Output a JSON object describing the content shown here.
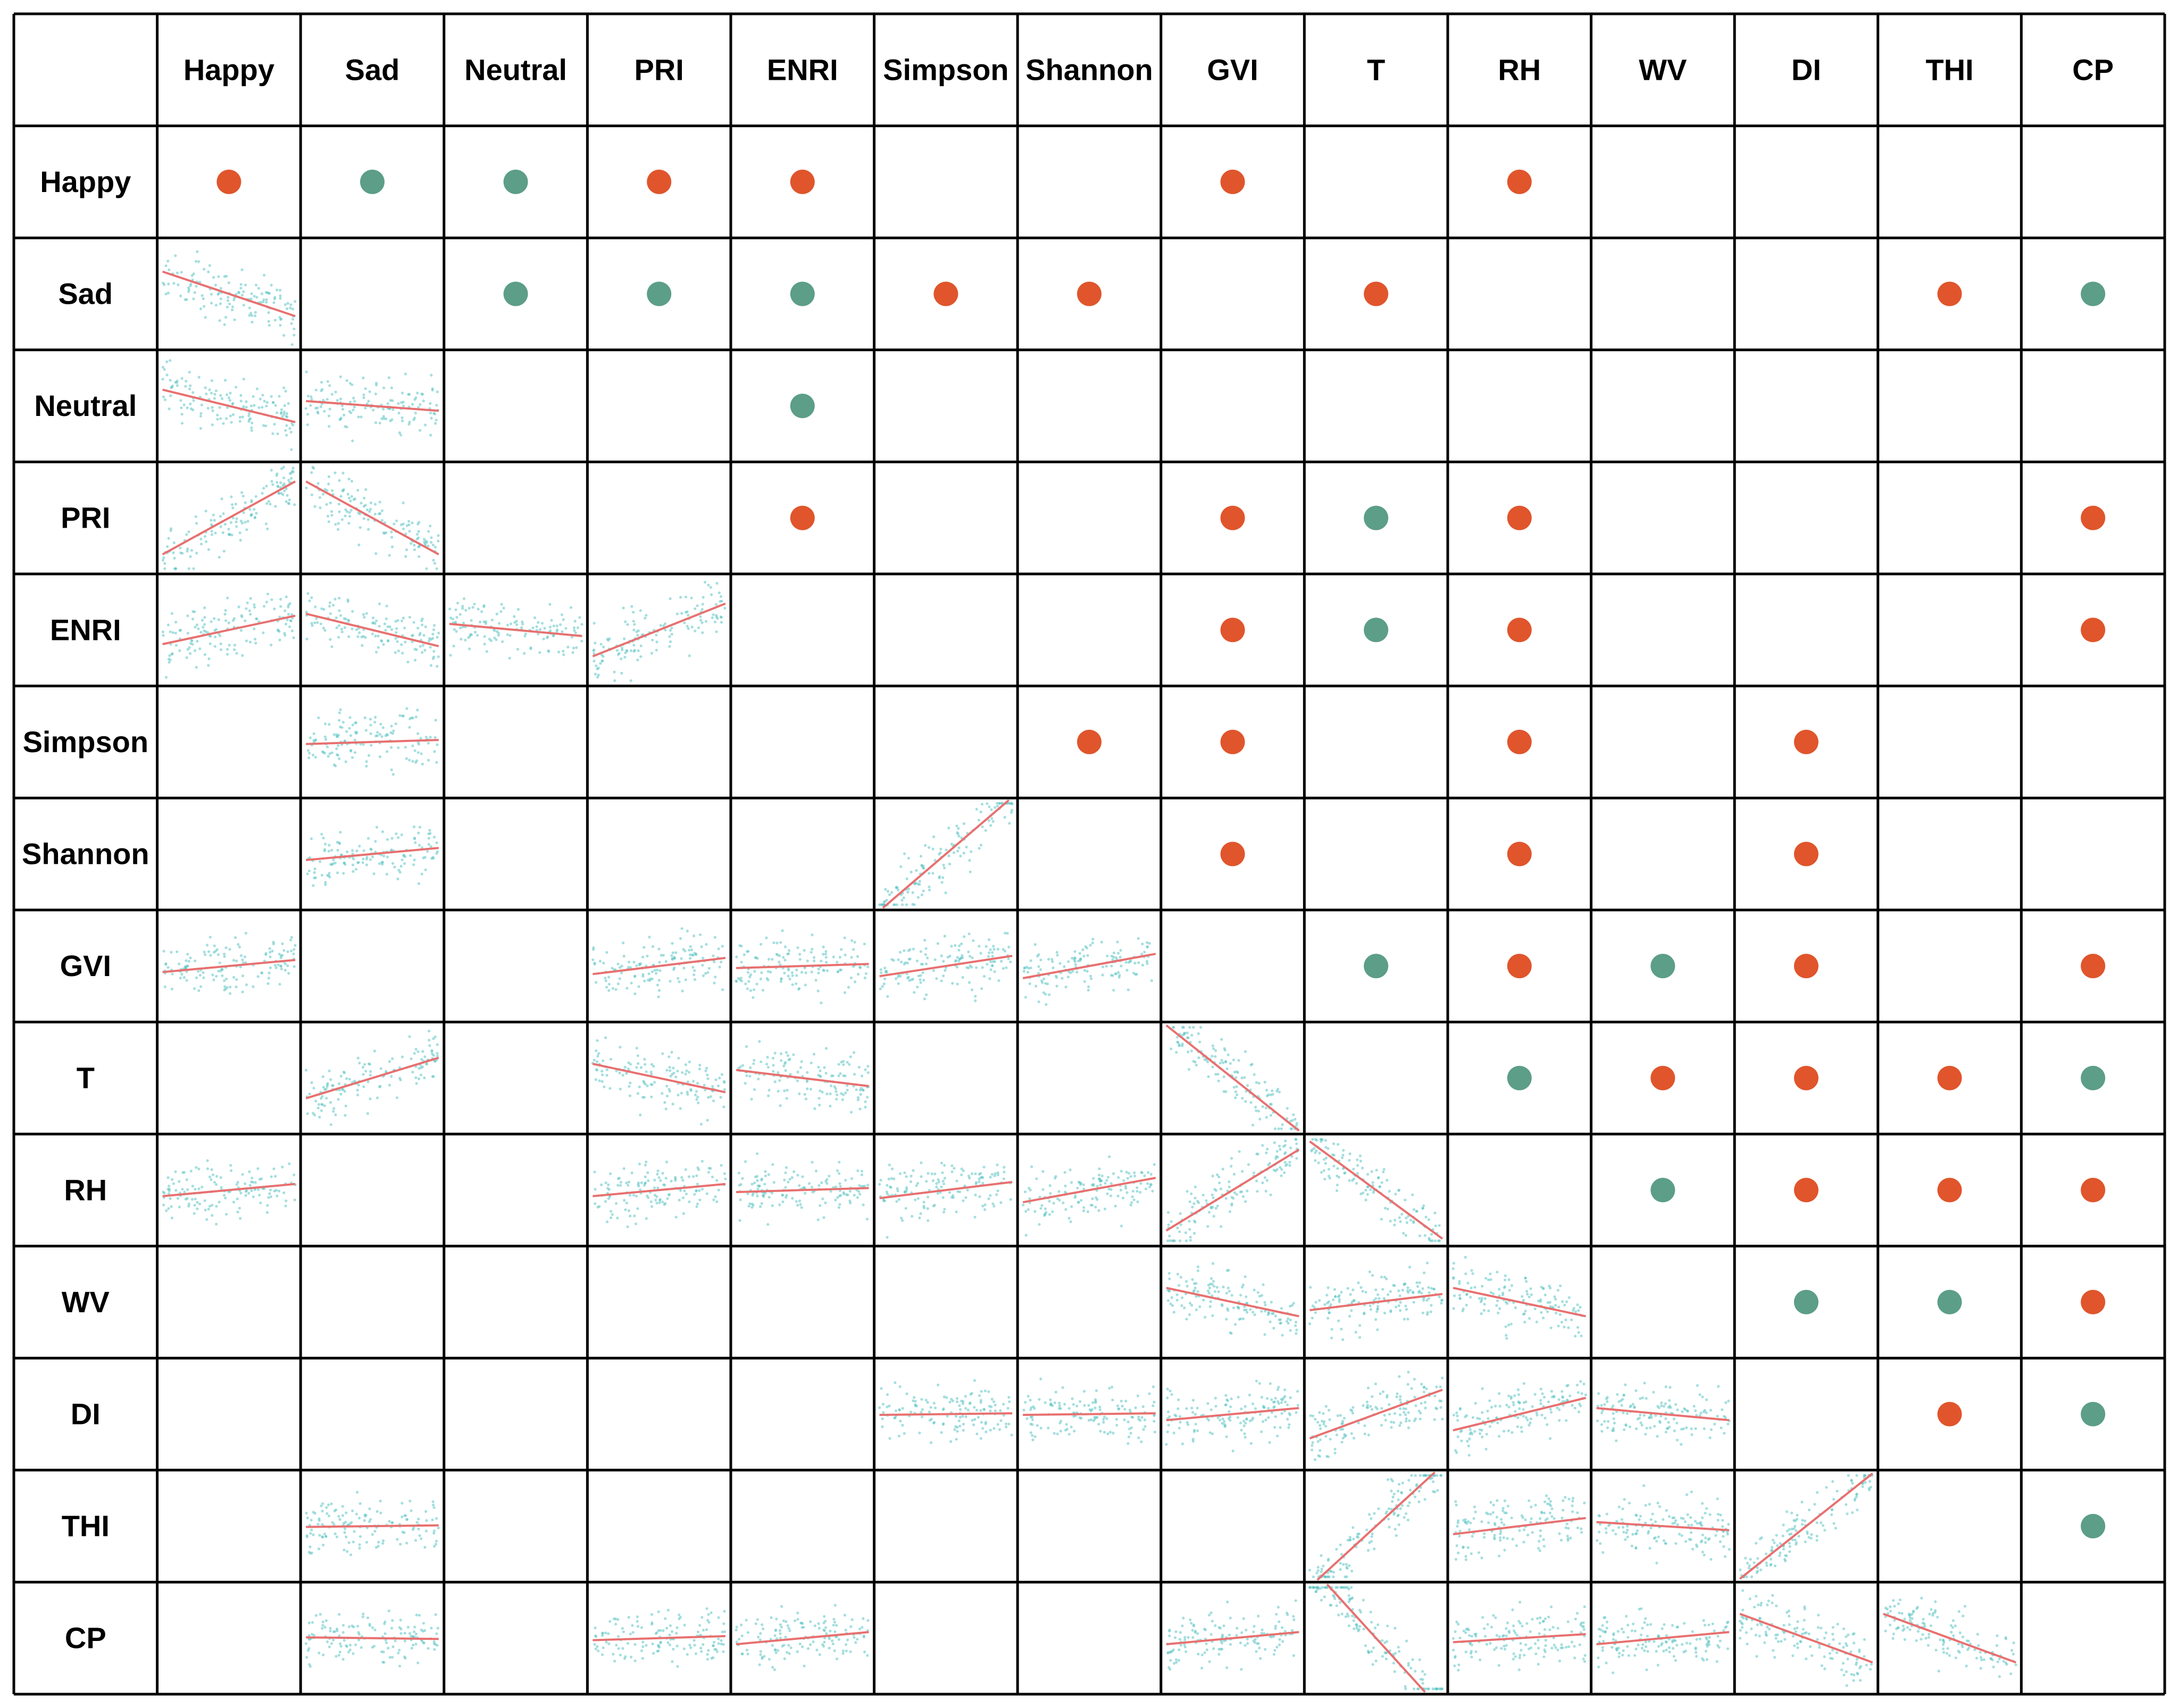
{
  "chart_data": {
    "type": "correlation-matrix",
    "variables": [
      "Happy",
      "Sad",
      "Neutral",
      "PRI",
      "ENRI",
      "Simpson",
      "Shannon",
      "GVI",
      "T",
      "RH",
      "WV",
      "DI",
      "THI",
      "CP"
    ],
    "colors": {
      "positive": "#E0552C",
      "negative": "#5C9E88",
      "scatter_points": "#5BC2C2",
      "fit_line": "#E87070",
      "grid": "#000000"
    },
    "upper_triangle_note": "Dot in cell [row, col] marks a significant correlation; positive or negative sign by color.",
    "significant_correlations": [
      {
        "row": "Happy",
        "col": "Happy",
        "sign": "positive"
      },
      {
        "row": "Happy",
        "col": "Sad",
        "sign": "negative"
      },
      {
        "row": "Happy",
        "col": "Neutral",
        "sign": "negative"
      },
      {
        "row": "Happy",
        "col": "PRI",
        "sign": "positive"
      },
      {
        "row": "Happy",
        "col": "ENRI",
        "sign": "positive"
      },
      {
        "row": "Happy",
        "col": "GVI",
        "sign": "positive"
      },
      {
        "row": "Happy",
        "col": "RH",
        "sign": "positive"
      },
      {
        "row": "Sad",
        "col": "Neutral",
        "sign": "negative"
      },
      {
        "row": "Sad",
        "col": "PRI",
        "sign": "negative"
      },
      {
        "row": "Sad",
        "col": "ENRI",
        "sign": "negative"
      },
      {
        "row": "Sad",
        "col": "Simpson",
        "sign": "positive"
      },
      {
        "row": "Sad",
        "col": "Shannon",
        "sign": "positive"
      },
      {
        "row": "Sad",
        "col": "T",
        "sign": "positive"
      },
      {
        "row": "Sad",
        "col": "THI",
        "sign": "positive"
      },
      {
        "row": "Sad",
        "col": "CP",
        "sign": "negative"
      },
      {
        "row": "Neutral",
        "col": "ENRI",
        "sign": "negative"
      },
      {
        "row": "PRI",
        "col": "ENRI",
        "sign": "positive"
      },
      {
        "row": "PRI",
        "col": "GVI",
        "sign": "positive"
      },
      {
        "row": "PRI",
        "col": "T",
        "sign": "negative"
      },
      {
        "row": "PRI",
        "col": "RH",
        "sign": "positive"
      },
      {
        "row": "PRI",
        "col": "CP",
        "sign": "positive"
      },
      {
        "row": "ENRI",
        "col": "GVI",
        "sign": "positive"
      },
      {
        "row": "ENRI",
        "col": "T",
        "sign": "negative"
      },
      {
        "row": "ENRI",
        "col": "RH",
        "sign": "positive"
      },
      {
        "row": "ENRI",
        "col": "CP",
        "sign": "positive"
      },
      {
        "row": "Simpson",
        "col": "Shannon",
        "sign": "positive"
      },
      {
        "row": "Simpson",
        "col": "GVI",
        "sign": "positive"
      },
      {
        "row": "Simpson",
        "col": "RH",
        "sign": "positive"
      },
      {
        "row": "Simpson",
        "col": "DI",
        "sign": "positive"
      },
      {
        "row": "Shannon",
        "col": "GVI",
        "sign": "positive"
      },
      {
        "row": "Shannon",
        "col": "RH",
        "sign": "positive"
      },
      {
        "row": "Shannon",
        "col": "DI",
        "sign": "positive"
      },
      {
        "row": "GVI",
        "col": "T",
        "sign": "negative"
      },
      {
        "row": "GVI",
        "col": "RH",
        "sign": "positive"
      },
      {
        "row": "GVI",
        "col": "WV",
        "sign": "negative"
      },
      {
        "row": "GVI",
        "col": "DI",
        "sign": "positive"
      },
      {
        "row": "GVI",
        "col": "CP",
        "sign": "positive"
      },
      {
        "row": "T",
        "col": "RH",
        "sign": "negative"
      },
      {
        "row": "T",
        "col": "WV",
        "sign": "positive"
      },
      {
        "row": "T",
        "col": "DI",
        "sign": "positive"
      },
      {
        "row": "T",
        "col": "THI",
        "sign": "positive"
      },
      {
        "row": "T",
        "col": "CP",
        "sign": "negative"
      },
      {
        "row": "RH",
        "col": "WV",
        "sign": "negative"
      },
      {
        "row": "RH",
        "col": "DI",
        "sign": "positive"
      },
      {
        "row": "RH",
        "col": "THI",
        "sign": "positive"
      },
      {
        "row": "RH",
        "col": "CP",
        "sign": "positive"
      },
      {
        "row": "WV",
        "col": "DI",
        "sign": "negative"
      },
      {
        "row": "WV",
        "col": "THI",
        "sign": "negative"
      },
      {
        "row": "WV",
        "col": "CP",
        "sign": "positive"
      },
      {
        "row": "DI",
        "col": "THI",
        "sign": "positive"
      },
      {
        "row": "DI",
        "col": "CP",
        "sign": "negative"
      },
      {
        "row": "THI",
        "col": "CP",
        "sign": "negative"
      }
    ],
    "lower_triangle_note": "Scatter plot with linear fit for selected variable pairs; slope is the approximate visual trend direction.",
    "scatter_panels": [
      {
        "row": "Sad",
        "col": "Happy",
        "slope": -0.55
      },
      {
        "row": "Neutral",
        "col": "Happy",
        "slope": -0.4
      },
      {
        "row": "Neutral",
        "col": "Sad",
        "slope": -0.12
      },
      {
        "row": "PRI",
        "col": "Happy",
        "slope": 0.9
      },
      {
        "row": "PRI",
        "col": "Sad",
        "slope": -0.9
      },
      {
        "row": "ENRI",
        "col": "Happy",
        "slope": 0.35
      },
      {
        "row": "ENRI",
        "col": "Sad",
        "slope": -0.4
      },
      {
        "row": "ENRI",
        "col": "Neutral",
        "slope": -0.15
      },
      {
        "row": "ENRI",
        "col": "PRI",
        "slope": 0.65
      },
      {
        "row": "Simpson",
        "col": "Sad",
        "slope": 0.05
      },
      {
        "row": "Shannon",
        "col": "Sad",
        "slope": 0.15
      },
      {
        "row": "Shannon",
        "col": "Simpson",
        "slope": 1.4
      },
      {
        "row": "GVI",
        "col": "Happy",
        "slope": 0.15
      },
      {
        "row": "GVI",
        "col": "PRI",
        "slope": 0.2
      },
      {
        "row": "GVI",
        "col": "ENRI",
        "slope": 0.05
      },
      {
        "row": "GVI",
        "col": "Simpson",
        "slope": 0.25
      },
      {
        "row": "GVI",
        "col": "Shannon",
        "slope": 0.3
      },
      {
        "row": "T",
        "col": "Sad",
        "slope": 0.5
      },
      {
        "row": "T",
        "col": "PRI",
        "slope": -0.35
      },
      {
        "row": "T",
        "col": "ENRI",
        "slope": -0.2
      },
      {
        "row": "T",
        "col": "GVI",
        "slope": -1.3
      },
      {
        "row": "RH",
        "col": "Happy",
        "slope": 0.15
      },
      {
        "row": "RH",
        "col": "PRI",
        "slope": 0.15
      },
      {
        "row": "RH",
        "col": "ENRI",
        "slope": 0.05
      },
      {
        "row": "RH",
        "col": "Simpson",
        "slope": 0.2
      },
      {
        "row": "RH",
        "col": "Shannon",
        "slope": 0.3
      },
      {
        "row": "RH",
        "col": "GVI",
        "slope": 1.0
      },
      {
        "row": "RH",
        "col": "T",
        "slope": -1.2
      },
      {
        "row": "WV",
        "col": "GVI",
        "slope": -0.35
      },
      {
        "row": "WV",
        "col": "T",
        "slope": 0.2
      },
      {
        "row": "WV",
        "col": "RH",
        "slope": -0.35
      },
      {
        "row": "DI",
        "col": "Simpson",
        "slope": 0.02
      },
      {
        "row": "DI",
        "col": "Shannon",
        "slope": 0.02
      },
      {
        "row": "DI",
        "col": "GVI",
        "slope": 0.15
      },
      {
        "row": "DI",
        "col": "T",
        "slope": 0.6
      },
      {
        "row": "DI",
        "col": "RH",
        "slope": 0.4
      },
      {
        "row": "DI",
        "col": "WV",
        "slope": -0.15
      },
      {
        "row": "THI",
        "col": "Sad",
        "slope": 0.02
      },
      {
        "row": "THI",
        "col": "T",
        "slope": 1.5
      },
      {
        "row": "THI",
        "col": "RH",
        "slope": 0.2
      },
      {
        "row": "THI",
        "col": "WV",
        "slope": -0.1
      },
      {
        "row": "THI",
        "col": "DI",
        "slope": 1.3
      },
      {
        "row": "CP",
        "col": "Sad",
        "slope": -0.02
      },
      {
        "row": "CP",
        "col": "PRI",
        "slope": 0.05
      },
      {
        "row": "CP",
        "col": "ENRI",
        "slope": 0.15
      },
      {
        "row": "CP",
        "col": "GVI",
        "slope": 0.15
      },
      {
        "row": "CP",
        "col": "T",
        "slope": -1.8
      },
      {
        "row": "CP",
        "col": "RH",
        "slope": 0.1
      },
      {
        "row": "CP",
        "col": "WV",
        "slope": 0.15
      },
      {
        "row": "CP",
        "col": "DI",
        "slope": -0.6
      },
      {
        "row": "CP",
        "col": "THI",
        "slope": -0.6
      }
    ]
  }
}
